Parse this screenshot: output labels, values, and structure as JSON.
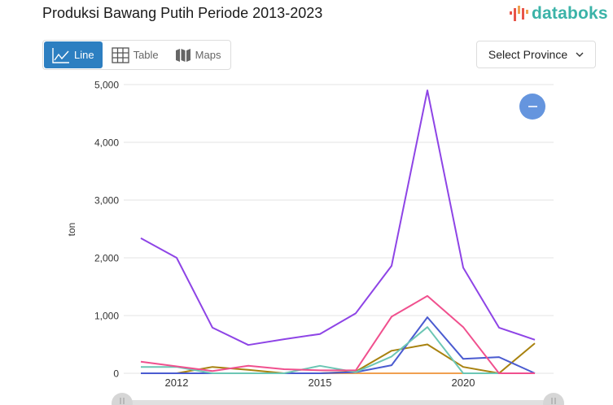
{
  "header": {
    "title": "Produksi Bawang Putih Periode 2013-2023",
    "logo_text": "databoks"
  },
  "view_tabs": [
    {
      "label": "Line",
      "icon": "line-chart-icon",
      "active": true
    },
    {
      "label": "Table",
      "icon": "table-icon",
      "active": false
    },
    {
      "label": "Maps",
      "icon": "map-icon",
      "active": false
    }
  ],
  "province_select": {
    "label": "Select Province",
    "icon": "chevron-down-icon"
  },
  "zoom_button": {
    "icon": "minus-icon"
  },
  "colors": {
    "accent": "#2d7fc1",
    "logo": "#3bb3a8",
    "zoom": "#6595de"
  },
  "chart_data": {
    "type": "line",
    "title": "Produksi Bawang Putih Periode 2013-2023",
    "xlabel": "",
    "ylabel": "ton",
    "ylim": [
      0,
      5000
    ],
    "yticks": [
      "0",
      "1,000",
      "2,000",
      "3,000",
      "4,000",
      "5,000"
    ],
    "xtick_labels": [
      {
        "label": "2012",
        "index": 1
      },
      {
        "label": "2015",
        "index": 5
      },
      {
        "label": "2020",
        "index": 9
      }
    ],
    "grid": true,
    "legend": "none",
    "x": [
      0,
      1,
      2,
      3,
      4,
      5,
      6,
      7,
      8,
      9,
      10,
      11
    ],
    "series": [
      {
        "name": "series-purple",
        "color": "#8e44e6",
        "values": [
          2340,
          2000,
          790,
          490,
          590,
          680,
          1040,
          1860,
          4900,
          1830,
          790,
          580
        ]
      },
      {
        "name": "series-pink",
        "color": "#f0508e",
        "values": [
          200,
          120,
          40,
          130,
          70,
          50,
          50,
          980,
          1340,
          800,
          0,
          0
        ]
      },
      {
        "name": "series-teal",
        "color": "#6cc6b4",
        "values": [
          110,
          110,
          0,
          0,
          0,
          130,
          20,
          290,
          800,
          0,
          0,
          0
        ]
      },
      {
        "name": "series-blue",
        "color": "#4a5bd0",
        "values": [
          0,
          0,
          0,
          0,
          0,
          0,
          20,
          140,
          970,
          250,
          280,
          0
        ]
      },
      {
        "name": "series-gold",
        "color": "#a8820f",
        "values": [
          0,
          0,
          110,
          60,
          0,
          0,
          30,
          390,
          500,
          110,
          0,
          520
        ]
      },
      {
        "name": "series-orange",
        "color": "#f0a050",
        "values": [
          0,
          0,
          0,
          0,
          0,
          0,
          0,
          0,
          0,
          0,
          0,
          0
        ]
      }
    ]
  }
}
